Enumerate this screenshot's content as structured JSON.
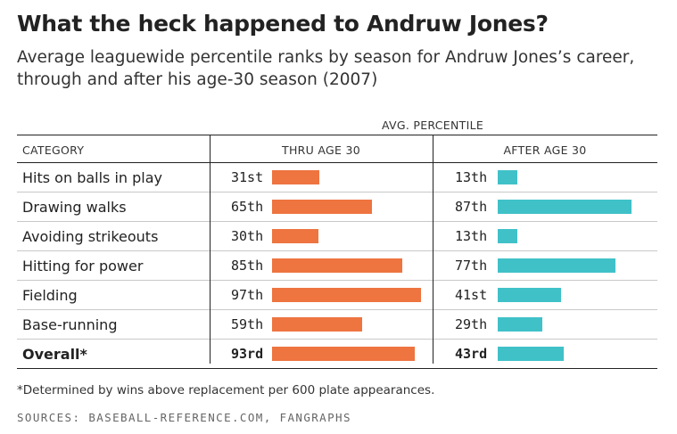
{
  "title": "What the heck happened to Andruw Jones?",
  "subtitle": "Average leaguewide percentile ranks by season for Andruw Jones’s career, through and after his age-30 season (2007)",
  "group_header": "AVG. PERCENTILE",
  "footnote": "*Determined by wins above replacement per 600 plate appearances.",
  "sources": "SOURCES: BASEBALL-REFERENCE.COM, FANGRAPHS",
  "colors": {
    "thru": "#ee7440",
    "after": "#40c1c8"
  },
  "chart_data": {
    "type": "bar",
    "orientation": "horizontal",
    "column_headers": [
      "CATEGORY",
      "THRU AGE 30",
      "AFTER AGE 30"
    ],
    "categories": [
      "Hits on balls in play",
      "Drawing walks",
      "Avoiding strikeouts",
      "Hitting for power",
      "Fielding",
      "Base-running",
      "Overall*"
    ],
    "series": [
      {
        "name": "THRU AGE 30",
        "values": [
          31,
          65,
          30,
          85,
          97,
          59,
          93
        ],
        "labels": [
          "31st",
          "65th",
          "30th",
          "85th",
          "97th",
          "59th",
          "93rd"
        ]
      },
      {
        "name": "AFTER AGE 30",
        "values": [
          13,
          87,
          13,
          77,
          41,
          29,
          43
        ],
        "labels": [
          "13th",
          "87th",
          "13th",
          "77th",
          "41st",
          "29th",
          "43rd"
        ]
      }
    ],
    "xlim": [
      0,
      100
    ]
  }
}
